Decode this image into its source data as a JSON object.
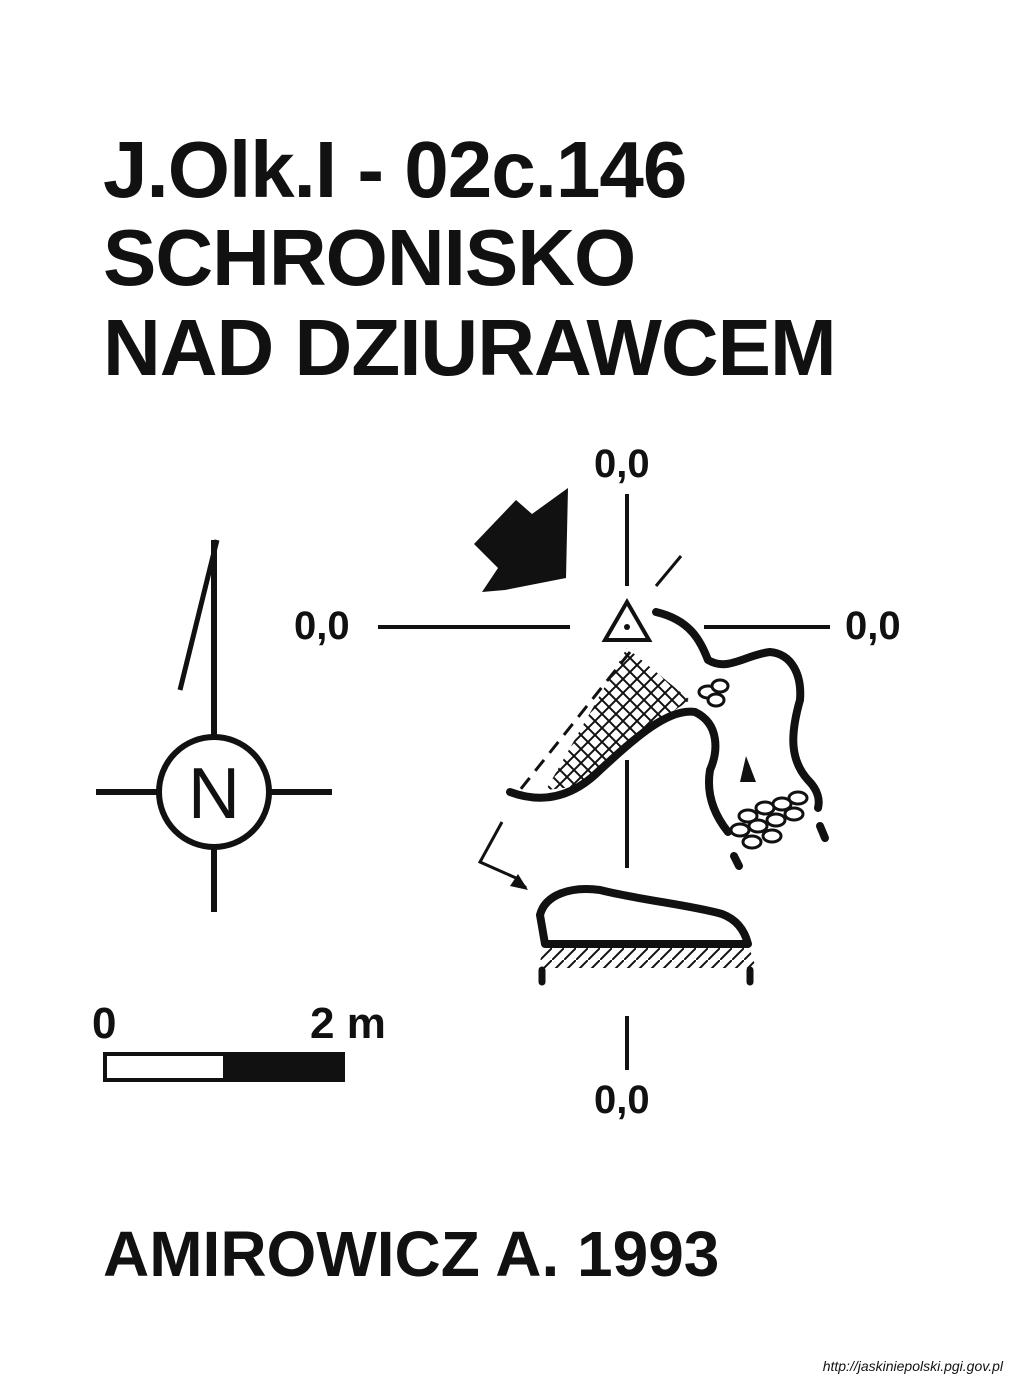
{
  "title": {
    "code": "J.Olk.I - 02c.146",
    "line2": "SCHRONISKO",
    "line3": "NAD DZIURAWCEM"
  },
  "coordinates": {
    "top": "0,0",
    "left": "0,0",
    "right": "0,0",
    "bottom": "0,0"
  },
  "compass": {
    "letter": "N"
  },
  "scale_bar": {
    "start_label": "0",
    "end_label": "2 m"
  },
  "author": "AMIROWICZ A. 1993",
  "source_url": "http://jaskiniepolski.pgi.gov.pl"
}
